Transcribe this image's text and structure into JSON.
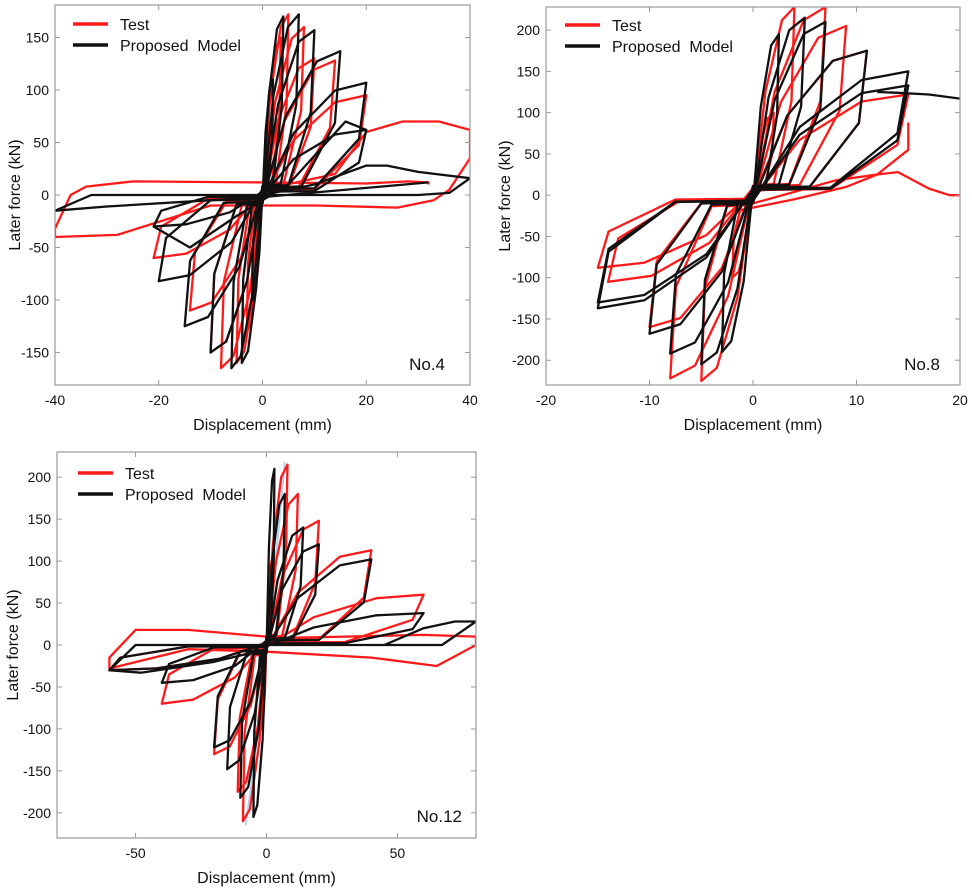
{
  "chart_data": [
    {
      "type": "line",
      "panel_label": "No.4",
      "xlabel": "Displacement (mm)",
      "ylabel": "Later force (kN)",
      "xlim": [
        -40,
        40
      ],
      "ylim": [
        -181,
        181
      ],
      "xticks": [
        -40,
        -20,
        0,
        20,
        40
      ],
      "yticks": [
        -150,
        -100,
        -50,
        0,
        50,
        100,
        150
      ],
      "grid": false,
      "legend": {
        "placement": "top-left",
        "entries": [
          "Test",
          "Proposed  Model"
        ]
      },
      "series": [
        {
          "name": "Test",
          "color": "#ff1a1a",
          "cycles": [
            [
              2,
              100,
              -2,
              -90
            ],
            [
              3.5,
              150,
              -3,
              -130
            ],
            [
              5,
              172,
              -5,
              -160
            ],
            [
              8,
              160,
              -8,
              -165
            ],
            [
              10,
              130,
              -10,
              -150
            ],
            [
              14,
              128,
              -14,
              -110
            ],
            [
              20,
              95,
              -21,
              -60
            ]
          ],
          "paths": [
            [
              [
                0,
                5
              ],
              [
                14,
                20
              ],
              [
                20,
                60
              ],
              [
                27,
                70
              ],
              [
                34,
                70
              ],
              [
                40,
                62
              ],
              [
                40,
                35
              ],
              [
                36,
                5
              ],
              [
                33,
                -5
              ],
              [
                26,
                -12
              ],
              [
                10,
                -10
              ],
              [
                -10,
                -10
              ],
              [
                -28,
                -38
              ],
              [
                -40,
                -40
              ],
              [
                -40,
                -32
              ],
              [
                -37,
                0
              ],
              [
                -34,
                8
              ],
              [
                -25,
                13
              ],
              [
                0,
                12
              ],
              [
                20,
                11
              ],
              [
                28,
                13
              ],
              [
                32,
                12
              ],
              [
                32,
                10
              ]
            ]
          ]
        },
        {
          "name": "Proposed  Model",
          "color": "#111111",
          "cycles": [
            [
              2,
              110,
              -2,
              -100
            ],
            [
              4,
              170,
              -4,
              -160
            ],
            [
              7,
              172,
              -6,
              -165
            ],
            [
              10,
              157,
              -10,
              -150
            ],
            [
              15,
              137,
              -15,
              -125
            ],
            [
              20,
              107,
              -20,
              -82
            ],
            [
              20,
              62,
              -21,
              -30
            ]
          ],
          "paths": [
            [
              [
                0,
                0
              ],
              [
                10,
                10
              ],
              [
                20,
                28
              ],
              [
                24,
                28
              ],
              [
                30,
                22
              ],
              [
                40,
                16
              ],
              [
                36,
                2
              ],
              [
                30,
                0
              ],
              [
                -33,
                0
              ],
              [
                -40,
                -15
              ],
              [
                -30,
                -11
              ],
              [
                -10,
                -5
              ],
              [
                0,
                -2
              ],
              [
                32,
                12
              ]
            ],
            [
              [
                -21,
                -30
              ],
              [
                -14,
                -50
              ],
              [
                -5,
                -20
              ],
              [
                5,
                10
              ],
              [
                16,
                70
              ],
              [
                20,
                62
              ]
            ]
          ]
        }
      ]
    },
    {
      "type": "line",
      "panel_label": "No.8",
      "xlabel": "Displacement (mm)",
      "ylabel": "Later force (kN)",
      "xlim": [
        -20,
        20
      ],
      "ylim": [
        -230,
        228
      ],
      "xticks": [
        -20,
        -10,
        0,
        10,
        20
      ],
      "yticks": [
        -200,
        -150,
        -100,
        -50,
        0,
        50,
        100,
        150,
        200
      ],
      "grid": false,
      "legend": {
        "placement": "top-left",
        "entries": [
          "Test",
          "Proposed  Model"
        ]
      },
      "series": [
        {
          "name": "Test",
          "color": "#ff1a1a",
          "cycles": [
            [
              2,
              100,
              -2,
              -100
            ],
            [
              4,
              228,
              -5,
              -225
            ],
            [
              7,
              228,
              -8,
              -222
            ],
            [
              9,
              205,
              -10,
              -160
            ],
            [
              11,
              175,
              -14,
              -105
            ],
            [
              15,
              122,
              -15,
              -88
            ]
          ],
          "paths": [
            [
              [
                0,
                -10
              ],
              [
                8,
                18
              ],
              [
                12,
                25
              ],
              [
                14,
                28
              ],
              [
                17,
                8
              ],
              [
                19,
                0
              ],
              [
                20,
                0
              ]
            ],
            [
              [
                15,
                88
              ],
              [
                15,
                55
              ],
              [
                12,
                25
              ],
              [
                9,
                10
              ],
              [
                4,
                -5
              ],
              [
                -2,
                -20
              ]
            ]
          ]
        },
        {
          "name": "Proposed  Model",
          "color": "#111111",
          "cycles": [
            [
              2.5,
              195,
              -3,
              -190
            ],
            [
              5,
              215,
              -5,
              -205
            ],
            [
              7,
              210,
              -8,
              -192
            ],
            [
              11,
              175,
              -10,
              -168
            ],
            [
              15,
              150,
              -15,
              -137
            ],
            [
              15,
              133,
              -15,
              -130
            ]
          ],
          "paths": [
            [
              [
                12,
                125
              ],
              [
                14,
                124
              ],
              [
                17,
                122
              ],
              [
                20,
                117
              ]
            ]
          ]
        }
      ]
    },
    {
      "type": "line",
      "panel_label": "No.12",
      "xlabel": "Displacement (mm)",
      "ylabel": "Later force (kN)",
      "xlim": [
        -80,
        80
      ],
      "ylim": [
        -230,
        230
      ],
      "xticks": [
        -50,
        0,
        50
      ],
      "yticks": [
        -200,
        -150,
        -100,
        -50,
        0,
        50,
        100,
        150,
        200
      ],
      "grid": false,
      "legend": {
        "placement": "top-left",
        "entries": [
          "Test",
          "Proposed  Model"
        ]
      },
      "series": [
        {
          "color": "#9cc8ee",
          "paths": [
            [
              [
                -8,
                -215
              ],
              [
                -5,
                -150
              ],
              [
                -2,
                -60
              ],
              [
                0,
                0
              ],
              [
                2,
                60
              ],
              [
                5,
                150
              ],
              [
                7,
                218
              ]
            ]
          ]
        },
        {
          "name": "Test",
          "color": "#ff1a1a",
          "cycles": [
            [
              2,
              100,
              -2,
              -100
            ],
            [
              8,
              215,
              -9,
              -210
            ],
            [
              12,
              180,
              -11,
              -175
            ],
            [
              20,
              148,
              -20,
              -130
            ],
            [
              40,
              113,
              -40,
              -70
            ],
            [
              60,
              60,
              -60,
              -30
            ]
          ],
          "paths": [
            [
              [
                0,
                8
              ],
              [
                30,
                10
              ],
              [
                60,
                12
              ],
              [
                80,
                10
              ],
              [
                80,
                0
              ],
              [
                65,
                -25
              ],
              [
                40,
                -15
              ],
              [
                0,
                -8
              ],
              [
                -30,
                -5
              ],
              [
                -60,
                -28
              ],
              [
                -60,
                -15
              ],
              [
                -50,
                18
              ],
              [
                -30,
                18
              ],
              [
                0,
                10
              ]
            ]
          ]
        },
        {
          "name": "Proposed  Model",
          "color": "#111111",
          "cycles": [
            [
              3,
              210,
              -5,
              -205
            ],
            [
              7,
              180,
              -10,
              -182
            ],
            [
              14,
              140,
              -15,
              -148
            ],
            [
              20,
              120,
              -20,
              -122
            ],
            [
              40,
              102,
              -40,
              -45
            ],
            [
              60,
              38,
              -60,
              -30
            ]
          ],
          "paths": [
            [
              [
                0,
                0
              ],
              [
                45,
                0
              ],
              [
                60,
                20
              ],
              [
                72,
                28
              ],
              [
                80,
                28
              ],
              [
                67,
                0
              ],
              [
                -50,
                0
              ],
              [
                -60,
                -30
              ],
              [
                -48,
                -33
              ],
              [
                -20,
                -20
              ],
              [
                0,
                -5
              ]
            ]
          ]
        }
      ]
    }
  ]
}
